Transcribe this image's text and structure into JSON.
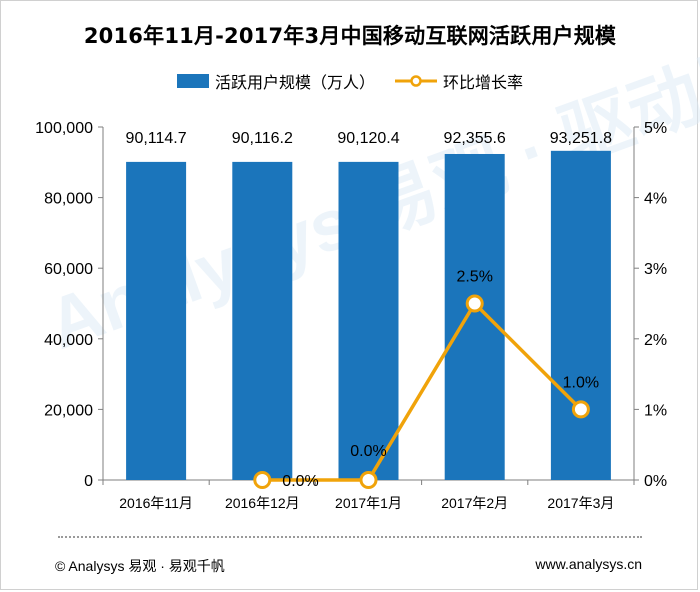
{
  "page": {
    "title": "2016年11月-2017年3月中国移动互联网活跃用户规模",
    "footer_left": "© Analysys 易观 · 易观千帆",
    "footer_right": "www.analysys.cn",
    "watermark": "Analysys 易观 · 驱动用户资产增长"
  },
  "colors": {
    "bar": "#1b75bb",
    "line": "#f0a30a",
    "marker_fill": "#ffffff",
    "axis": "#7f7f7f"
  },
  "chart_data": {
    "type": "bar",
    "title": "2016年11月-2017年3月中国移动互联网活跃用户规模",
    "categories": [
      "2016年11月",
      "2016年12月",
      "2017年1月",
      "2017年2月",
      "2017年3月"
    ],
    "series": [
      {
        "name": "活跃用户规模（万人）",
        "type": "bar",
        "axis": "left",
        "values": [
          90114.7,
          90116.2,
          90120.4,
          92355.6,
          93251.8
        ],
        "labels": [
          "90,114.7",
          "90,116.2",
          "90,120.4",
          "92,355.6",
          "93,251.8"
        ]
      },
      {
        "name": "环比增长率",
        "type": "line",
        "axis": "right",
        "values": [
          null,
          0.0,
          0.0,
          2.5,
          1.0
        ],
        "labels": [
          null,
          "0.0%",
          "0.0%",
          "2.5%",
          "1.0%"
        ]
      }
    ],
    "y_left": {
      "min": 0,
      "max": 100000,
      "ticks": [
        0,
        20000,
        40000,
        60000,
        80000,
        100000
      ],
      "tick_labels": [
        "0",
        "20,000",
        "40,000",
        "60,000",
        "80,000",
        "100,000"
      ]
    },
    "y_right": {
      "min": 0,
      "max": 5,
      "ticks": [
        0,
        1,
        2,
        3,
        4,
        5
      ],
      "tick_labels": [
        "0%",
        "1%",
        "2%",
        "3%",
        "4%",
        "5%"
      ]
    },
    "grid": false,
    "legend_position": "top-center"
  }
}
